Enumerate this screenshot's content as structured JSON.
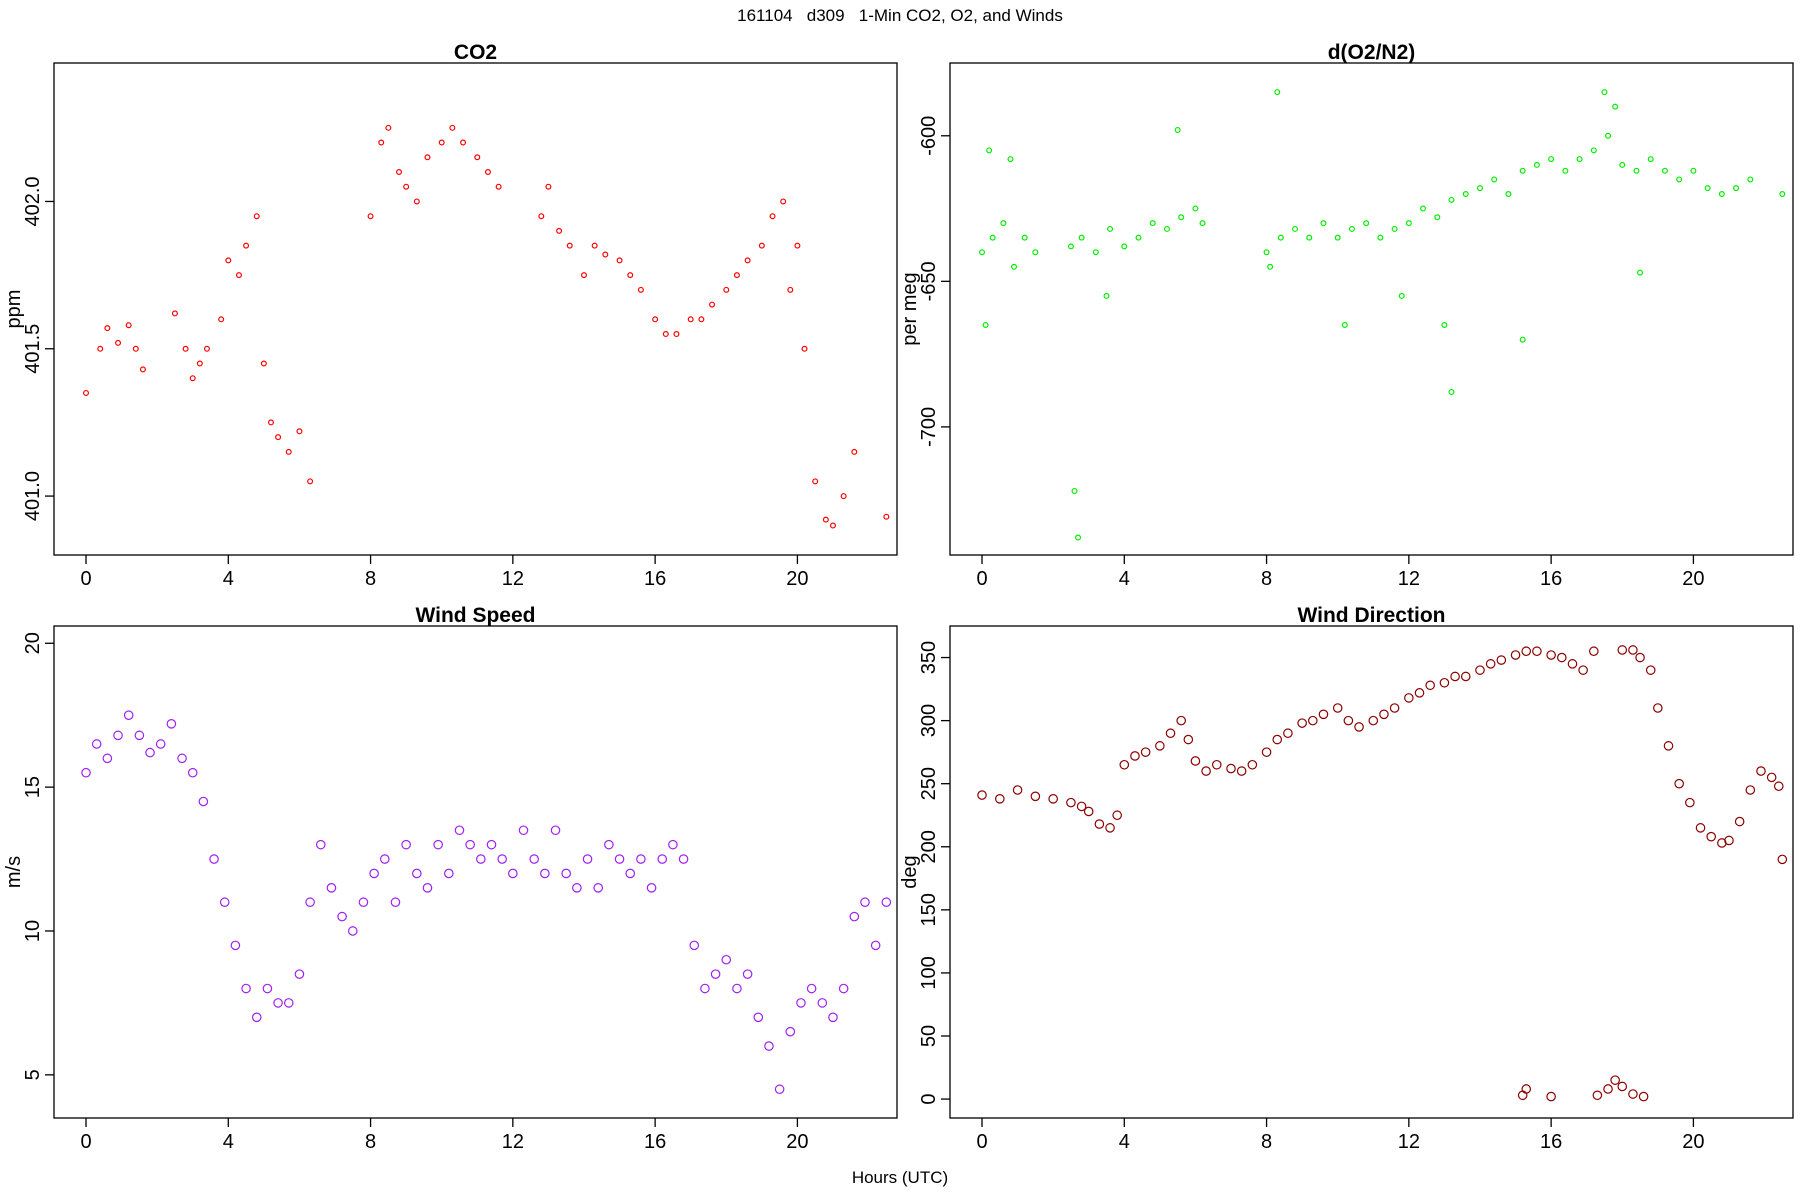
{
  "figure": {
    "title": "161104   d309   1-Min CO2, O2, and Winds",
    "x_axis_label": "Hours (UTC)"
  },
  "chart_data": [
    {
      "type": "scatter",
      "title": "CO2",
      "xlabel": "",
      "ylabel": "ppm",
      "xlim": [
        -0.9,
        22.8
      ],
      "ylim": [
        400.8,
        402.47
      ],
      "x_ticks": [
        0,
        4,
        8,
        12,
        16,
        20
      ],
      "y_ticks": [
        401.0,
        401.5,
        402.0
      ],
      "y_tick_labels": [
        "401.0",
        "401.5",
        "402.0"
      ],
      "color": "#ff0000",
      "marker_size": 2.4,
      "series": [
        {
          "x": [
            0.0,
            0.4,
            0.6,
            0.9,
            1.2,
            1.4,
            1.6,
            2.5,
            2.8,
            3.0,
            3.2,
            3.4,
            3.8,
            4.0,
            4.3,
            4.5,
            4.8,
            5.0,
            5.2,
            5.4,
            5.7,
            6.0,
            6.3,
            8.0,
            8.3,
            8.5,
            8.8,
            9.0,
            9.3,
            9.6,
            10.0,
            10.3,
            10.6,
            11.0,
            11.3,
            11.6,
            12.8,
            13.0,
            13.3,
            13.6,
            14.0,
            14.3,
            14.6,
            15.0,
            15.3,
            15.6,
            16.0,
            16.3,
            16.6,
            17.0,
            17.3,
            17.6,
            18.0,
            18.3,
            18.6,
            19.0,
            19.3,
            19.6,
            19.8,
            20.0,
            20.2,
            20.5,
            20.8,
            21.0,
            21.3,
            21.6,
            22.5
          ],
          "y": [
            401.35,
            401.5,
            401.57,
            401.52,
            401.58,
            401.5,
            401.43,
            401.62,
            401.5,
            401.4,
            401.45,
            401.5,
            401.6,
            401.8,
            401.75,
            401.85,
            401.95,
            401.45,
            401.25,
            401.2,
            401.15,
            401.22,
            401.05,
            401.95,
            402.2,
            402.25,
            402.1,
            402.05,
            402.0,
            402.15,
            402.2,
            402.25,
            402.2,
            402.15,
            402.1,
            402.05,
            401.95,
            402.05,
            401.9,
            401.85,
            401.75,
            401.85,
            401.82,
            401.8,
            401.75,
            401.7,
            401.6,
            401.55,
            401.55,
            401.6,
            401.6,
            401.65,
            401.7,
            401.75,
            401.8,
            401.85,
            401.95,
            402.0,
            401.7,
            401.85,
            401.5,
            401.05,
            400.92,
            400.9,
            401.0,
            401.15,
            400.93
          ]
        }
      ]
    },
    {
      "type": "scatter",
      "title": "d(O2/N2)",
      "xlabel": "",
      "ylabel": "per meg",
      "xlim": [
        -0.9,
        22.8
      ],
      "ylim": [
        -744,
        -575
      ],
      "x_ticks": [
        0,
        4,
        8,
        12,
        16,
        20
      ],
      "y_ticks": [
        -700,
        -650,
        -600
      ],
      "y_tick_labels": [
        "-700",
        "-650",
        "-600"
      ],
      "color": "#00ee00",
      "marker_size": 2.4,
      "series": [
        {
          "x": [
            0.0,
            0.3,
            0.6,
            0.9,
            1.2,
            1.5,
            2.5,
            2.8,
            3.2,
            3.6,
            4.0,
            4.4,
            4.8,
            5.2,
            5.6,
            6.0,
            6.2,
            8.0,
            8.4,
            8.8,
            9.2,
            9.6,
            10.0,
            10.4,
            10.8,
            11.2,
            11.6,
            12.0,
            12.4,
            12.8,
            13.2,
            13.6,
            14.0,
            14.4,
            14.8,
            15.2,
            15.6,
            16.0,
            16.4,
            16.8,
            17.2,
            17.6,
            18.0,
            18.4,
            18.8,
            19.2,
            19.6,
            20.0,
            20.4,
            20.8,
            21.2,
            21.6,
            22.5
          ],
          "y": [
            -640,
            -635,
            -630,
            -645,
            -635,
            -640,
            -638,
            -635,
            -640,
            -632,
            -638,
            -635,
            -630,
            -632,
            -628,
            -625,
            -630,
            -640,
            -635,
            -632,
            -635,
            -630,
            -635,
            -632,
            -630,
            -635,
            -632,
            -630,
            -625,
            -628,
            -622,
            -620,
            -618,
            -615,
            -620,
            -612,
            -610,
            -608,
            -612,
            -608,
            -605,
            -600,
            -610,
            -612,
            -608,
            -612,
            -615,
            -612,
            -618,
            -620,
            -618,
            -615,
            -620
          ]
        },
        {
          "x": [
            0.1,
            0.2,
            0.8,
            2.6,
            2.7,
            3.5,
            5.5,
            8.1,
            8.3,
            10.2,
            11.8,
            13.0,
            13.2,
            15.2,
            17.5,
            17.8,
            18.5
          ],
          "y": [
            -665,
            -605,
            -608,
            -722,
            -738,
            -655,
            -598,
            -645,
            -585,
            -665,
            -655,
            -665,
            -688,
            -670,
            -585,
            -590,
            -647
          ]
        }
      ]
    },
    {
      "type": "scatter",
      "title": "Wind Speed",
      "xlabel": "",
      "ylabel": "m/s",
      "xlim": [
        -0.9,
        22.8
      ],
      "ylim": [
        3.5,
        20.6
      ],
      "x_ticks": [
        0,
        4,
        8,
        12,
        16,
        20
      ],
      "y_ticks": [
        5,
        10,
        15,
        20
      ],
      "y_tick_labels": [
        "5",
        "10",
        "15",
        "20"
      ],
      "color": "#a020f0",
      "marker_size": 4.2,
      "series": [
        {
          "x": [
            0.0,
            0.3,
            0.6,
            0.9,
            1.2,
            1.5,
            1.8,
            2.1,
            2.4,
            2.7,
            3.0,
            3.3,
            3.6,
            3.9,
            4.2,
            4.5,
            4.8,
            5.1,
            5.4,
            5.7,
            6.0,
            6.3,
            6.6,
            6.9,
            7.2,
            7.5,
            7.8,
            8.1,
            8.4,
            8.7,
            9.0,
            9.3,
            9.6,
            9.9,
            10.2,
            10.5,
            10.8,
            11.1,
            11.4,
            11.7,
            12.0,
            12.3,
            12.6,
            12.9,
            13.2,
            13.5,
            13.8,
            14.1,
            14.4,
            14.7,
            15.0,
            15.3,
            15.6,
            15.9,
            16.2,
            16.5,
            16.8,
            17.1,
            17.4,
            17.7,
            18.0,
            18.3,
            18.6,
            18.9,
            19.2,
            19.5,
            19.8,
            20.1,
            20.4,
            20.7,
            21.0,
            21.3,
            21.6,
            21.9,
            22.2,
            22.5
          ],
          "y": [
            15.5,
            16.5,
            16.0,
            16.8,
            17.5,
            16.8,
            16.2,
            16.5,
            17.2,
            16.0,
            15.5,
            14.5,
            12.5,
            11.0,
            9.5,
            8.0,
            7.0,
            8.0,
            7.5,
            7.5,
            8.5,
            11.0,
            13.0,
            11.5,
            10.5,
            10.0,
            11.0,
            12.0,
            12.5,
            11.0,
            13.0,
            12.0,
            11.5,
            13.0,
            12.0,
            13.5,
            13.0,
            12.5,
            13.0,
            12.5,
            12.0,
            13.5,
            12.5,
            12.0,
            13.5,
            12.0,
            11.5,
            12.5,
            11.5,
            13.0,
            12.5,
            12.0,
            12.5,
            11.5,
            12.5,
            13.0,
            12.5,
            9.5,
            8.0,
            8.5,
            9.0,
            8.0,
            8.5,
            7.0,
            6.0,
            4.5,
            6.5,
            7.5,
            8.0,
            7.5,
            7.0,
            8.0,
            10.5,
            11.0,
            9.5,
            11.0
          ]
        }
      ]
    },
    {
      "type": "scatter",
      "title": "Wind Direction",
      "xlabel": "",
      "ylabel": "deg",
      "xlim": [
        -0.9,
        22.8
      ],
      "ylim": [
        -15,
        375
      ],
      "x_ticks": [
        0,
        4,
        8,
        12,
        16,
        20
      ],
      "y_ticks": [
        0,
        50,
        100,
        150,
        200,
        250,
        300,
        350
      ],
      "y_tick_labels": [
        "0",
        "50",
        "100",
        "150",
        "200",
        "250",
        "300",
        "350"
      ],
      "color": "#8b0000",
      "marker_size": 4.2,
      "series": [
        {
          "x": [
            0.0,
            0.5,
            1.0,
            1.5,
            2.0,
            2.5,
            2.8,
            3.0,
            3.3,
            3.6,
            3.8,
            4.0,
            4.3,
            4.6,
            5.0,
            5.3,
            5.6,
            5.8,
            6.0,
            6.3,
            6.6,
            7.0,
            7.3,
            7.6,
            8.0,
            8.3,
            8.6,
            9.0,
            9.3,
            9.6,
            10.0,
            10.3,
            10.6,
            11.0,
            11.3,
            11.6,
            12.0,
            12.3,
            12.6,
            13.0,
            13.3,
            13.6,
            14.0,
            14.3,
            14.6,
            15.0,
            15.3,
            15.6,
            16.0,
            16.3,
            16.6,
            16.9,
            17.2,
            18.0,
            18.3,
            18.5,
            18.8,
            19.0,
            19.3,
            19.6,
            19.9,
            20.2,
            20.5,
            20.8,
            21.0,
            21.3,
            21.6,
            21.9,
            22.2,
            22.4,
            22.5
          ],
          "y": [
            241,
            238,
            245,
            240,
            238,
            235,
            232,
            228,
            218,
            215,
            225,
            265,
            272,
            275,
            280,
            290,
            300,
            285,
            268,
            260,
            265,
            262,
            260,
            265,
            275,
            285,
            290,
            298,
            300,
            305,
            310,
            300,
            295,
            300,
            305,
            310,
            318,
            322,
            328,
            330,
            335,
            335,
            340,
            345,
            348,
            352,
            355,
            355,
            352,
            350,
            345,
            340,
            355,
            356,
            356,
            350,
            340,
            310,
            280,
            250,
            235,
            215,
            208,
            203,
            205,
            220,
            245,
            260,
            255,
            248,
            190
          ]
        },
        {
          "x": [
            15.2,
            15.3,
            16.0,
            17.3,
            17.6,
            17.8,
            18.0,
            18.3,
            18.6
          ],
          "y": [
            3,
            8,
            2,
            3,
            8,
            15,
            10,
            4,
            2
          ]
        }
      ]
    }
  ]
}
